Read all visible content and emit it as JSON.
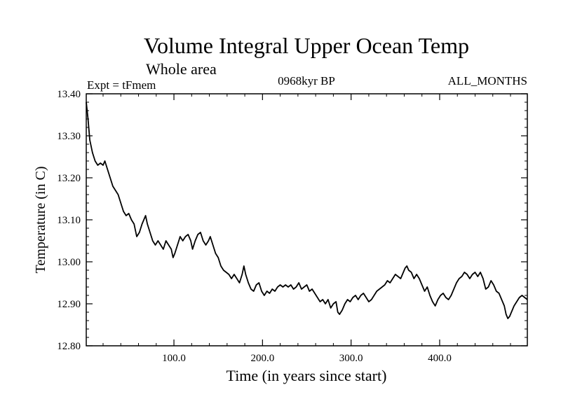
{
  "chart_data": {
    "type": "line",
    "title": "Volume Integral Upper Ocean Temp",
    "subtitle": "Whole area",
    "left_label": "Expt = tFmem",
    "center_label": "0968kyr BP",
    "right_label": "ALL_MONTHS",
    "xlabel": "Time (in years since start)",
    "ylabel": "Temperature (in C)",
    "xlim": [
      1,
      499
    ],
    "ylim": [
      12.8,
      13.4
    ],
    "x_ticks": [
      100,
      200,
      300,
      400
    ],
    "x_tick_labels": [
      "100.0",
      "200.0",
      "300.0",
      "400.0"
    ],
    "y_ticks": [
      12.8,
      12.9,
      13.0,
      13.1,
      13.2,
      13.3,
      13.4
    ],
    "y_tick_labels": [
      "12.80",
      "12.90",
      "13.00",
      "13.10",
      "13.20",
      "13.30",
      "13.40"
    ],
    "grid": false,
    "series": [
      {
        "name": "Temperature",
        "color": "#000000",
        "points": [
          [
            1,
            13.38
          ],
          [
            3,
            13.34
          ],
          [
            5,
            13.29
          ],
          [
            8,
            13.26
          ],
          [
            11,
            13.24
          ],
          [
            14,
            13.23
          ],
          [
            17,
            13.235
          ],
          [
            20,
            13.23
          ],
          [
            22,
            13.24
          ],
          [
            25,
            13.22
          ],
          [
            28,
            13.2
          ],
          [
            31,
            13.18
          ],
          [
            34,
            13.17
          ],
          [
            37,
            13.16
          ],
          [
            40,
            13.14
          ],
          [
            43,
            13.12
          ],
          [
            46,
            13.11
          ],
          [
            49,
            13.115
          ],
          [
            52,
            13.1
          ],
          [
            55,
            13.09
          ],
          [
            58,
            13.06
          ],
          [
            61,
            13.07
          ],
          [
            64,
            13.09
          ],
          [
            66,
            13.1
          ],
          [
            68,
            13.11
          ],
          [
            70,
            13.09
          ],
          [
            73,
            13.07
          ],
          [
            76,
            13.05
          ],
          [
            79,
            13.04
          ],
          [
            82,
            13.05
          ],
          [
            85,
            13.04
          ],
          [
            88,
            13.03
          ],
          [
            91,
            13.05
          ],
          [
            94,
            13.04
          ],
          [
            97,
            13.03
          ],
          [
            99,
            13.01
          ],
          [
            101,
            13.02
          ],
          [
            104,
            13.04
          ],
          [
            107,
            13.06
          ],
          [
            110,
            13.05
          ],
          [
            113,
            13.06
          ],
          [
            116,
            13.065
          ],
          [
            119,
            13.05
          ],
          [
            121,
            13.03
          ],
          [
            124,
            13.05
          ],
          [
            127,
            13.065
          ],
          [
            130,
            13.07
          ],
          [
            133,
            13.05
          ],
          [
            136,
            13.04
          ],
          [
            139,
            13.05
          ],
          [
            141,
            13.06
          ],
          [
            144,
            13.04
          ],
          [
            147,
            13.02
          ],
          [
            150,
            13.01
          ],
          [
            153,
            12.99
          ],
          [
            156,
            12.98
          ],
          [
            159,
            12.975
          ],
          [
            162,
            12.97
          ],
          [
            165,
            12.96
          ],
          [
            168,
            12.97
          ],
          [
            171,
            12.96
          ],
          [
            174,
            12.95
          ],
          [
            177,
            12.97
          ],
          [
            179,
            12.99
          ],
          [
            181,
            12.97
          ],
          [
            184,
            12.95
          ],
          [
            187,
            12.935
          ],
          [
            190,
            12.93
          ],
          [
            193,
            12.945
          ],
          [
            196,
            12.95
          ],
          [
            199,
            12.93
          ],
          [
            202,
            12.92
          ],
          [
            205,
            12.93
          ],
          [
            208,
            12.925
          ],
          [
            211,
            12.935
          ],
          [
            214,
            12.93
          ],
          [
            217,
            12.94
          ],
          [
            220,
            12.945
          ],
          [
            223,
            12.94
          ],
          [
            226,
            12.945
          ],
          [
            229,
            12.94
          ],
          [
            232,
            12.945
          ],
          [
            235,
            12.935
          ],
          [
            238,
            12.94
          ],
          [
            241,
            12.95
          ],
          [
            244,
            12.935
          ],
          [
            247,
            12.94
          ],
          [
            250,
            12.945
          ],
          [
            253,
            12.93
          ],
          [
            256,
            12.935
          ],
          [
            259,
            12.925
          ],
          [
            262,
            12.915
          ],
          [
            265,
            12.905
          ],
          [
            268,
            12.91
          ],
          [
            271,
            12.9
          ],
          [
            274,
            12.91
          ],
          [
            277,
            12.89
          ],
          [
            280,
            12.9
          ],
          [
            283,
            12.905
          ],
          [
            285,
            12.88
          ],
          [
            287,
            12.875
          ],
          [
            290,
            12.885
          ],
          [
            293,
            12.9
          ],
          [
            296,
            12.91
          ],
          [
            299,
            12.905
          ],
          [
            302,
            12.915
          ],
          [
            305,
            12.92
          ],
          [
            308,
            12.91
          ],
          [
            311,
            12.92
          ],
          [
            314,
            12.925
          ],
          [
            317,
            12.915
          ],
          [
            320,
            12.905
          ],
          [
            323,
            12.91
          ],
          [
            326,
            12.92
          ],
          [
            329,
            12.93
          ],
          [
            332,
            12.935
          ],
          [
            335,
            12.94
          ],
          [
            338,
            12.945
          ],
          [
            341,
            12.955
          ],
          [
            344,
            12.95
          ],
          [
            347,
            12.96
          ],
          [
            350,
            12.97
          ],
          [
            353,
            12.965
          ],
          [
            356,
            12.96
          ],
          [
            359,
            12.975
          ],
          [
            361,
            12.985
          ],
          [
            363,
            12.99
          ],
          [
            365,
            12.98
          ],
          [
            368,
            12.975
          ],
          [
            371,
            12.96
          ],
          [
            374,
            12.97
          ],
          [
            377,
            12.96
          ],
          [
            380,
            12.945
          ],
          [
            383,
            12.93
          ],
          [
            386,
            12.94
          ],
          [
            389,
            12.92
          ],
          [
            392,
            12.905
          ],
          [
            395,
            12.895
          ],
          [
            398,
            12.91
          ],
          [
            401,
            12.92
          ],
          [
            404,
            12.925
          ],
          [
            407,
            12.915
          ],
          [
            410,
            12.91
          ],
          [
            413,
            12.92
          ],
          [
            416,
            12.935
          ],
          [
            419,
            12.95
          ],
          [
            422,
            12.96
          ],
          [
            425,
            12.965
          ],
          [
            428,
            12.975
          ],
          [
            431,
            12.97
          ],
          [
            434,
            12.96
          ],
          [
            437,
            12.97
          ],
          [
            440,
            12.975
          ],
          [
            443,
            12.965
          ],
          [
            446,
            12.975
          ],
          [
            449,
            12.96
          ],
          [
            452,
            12.935
          ],
          [
            455,
            12.94
          ],
          [
            458,
            12.955
          ],
          [
            461,
            12.945
          ],
          [
            464,
            12.93
          ],
          [
            467,
            12.925
          ],
          [
            470,
            12.91
          ],
          [
            473,
            12.895
          ],
          [
            475,
            12.875
          ],
          [
            477,
            12.865
          ],
          [
            479,
            12.87
          ],
          [
            481,
            12.88
          ],
          [
            484,
            12.895
          ],
          [
            487,
            12.905
          ],
          [
            490,
            12.915
          ],
          [
            493,
            12.92
          ],
          [
            496,
            12.915
          ],
          [
            499,
            12.91
          ]
        ]
      }
    ]
  }
}
